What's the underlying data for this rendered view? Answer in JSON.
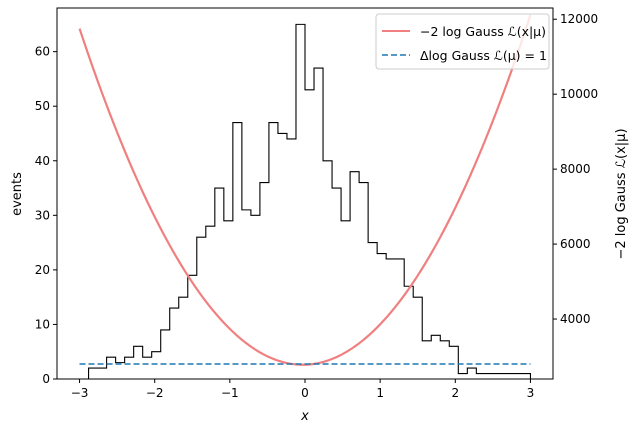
{
  "chart_data": {
    "type": "line",
    "xlabel": "x",
    "ylabel_left": "events",
    "ylabel_right": "−2 log Gauss ℒ(x|μ)",
    "xlim": [
      -3.3,
      3.3
    ],
    "ylim_left": [
      0,
      68
    ],
    "ylim_right": [
      2400,
      12300
    ],
    "x_ticks": [
      -3,
      -2,
      -1,
      0,
      1,
      2,
      3
    ],
    "x_tick_labels": [
      "−3",
      "−2",
      "−1",
      "0",
      "1",
      "2",
      "3"
    ],
    "y_left_ticks": [
      0,
      10,
      20,
      30,
      40,
      50,
      60
    ],
    "y_right_ticks": [
      4000,
      6000,
      8000,
      10000,
      12000
    ],
    "grid": false,
    "legend_position": "top-right",
    "legend": [
      {
        "label": "−2 log Gauss ℒ(x|μ)",
        "style": "solid",
        "color": "#f08080"
      },
      {
        "label": "Δlog Gauss ℒ(μ) = 1",
        "style": "dashed",
        "color": "#1f77b4"
      }
    ],
    "histogram": {
      "axis": "left",
      "color": "#000000",
      "bin_edges": [
        -3.0,
        -2.88,
        -2.76,
        -2.64,
        -2.52,
        -2.4,
        -2.28,
        -2.16,
        -2.04,
        -1.92,
        -1.8,
        -1.68,
        -1.56,
        -1.44,
        -1.32,
        -1.2,
        -1.08,
        -0.96,
        -0.84,
        -0.72,
        -0.6,
        -0.48,
        -0.36,
        -0.24,
        -0.12,
        0.0,
        0.12,
        0.24,
        0.36,
        0.48,
        0.6,
        0.72,
        0.84,
        0.96,
        1.08,
        1.2,
        1.32,
        1.44,
        1.56,
        1.68,
        1.8,
        1.92,
        2.04,
        2.16,
        2.28,
        2.4,
        2.52,
        2.64,
        2.76,
        2.88,
        3.0
      ],
      "counts": [
        0,
        2,
        2,
        4,
        3,
        4,
        6,
        4,
        5,
        9,
        13,
        15,
        19,
        26,
        28,
        35,
        29,
        47,
        31,
        30,
        36,
        47,
        45,
        44,
        65,
        53,
        57,
        40,
        35,
        29,
        38,
        36,
        25,
        23,
        22,
        22,
        17,
        15,
        7,
        8,
        7,
        6,
        1,
        2,
        1,
        1,
        1,
        1,
        1,
        1
      ]
    },
    "series": [
      {
        "axis": "right",
        "color": "#f08080",
        "style": "solid",
        "curve": "parabola",
        "x_min": -3.0,
        "x_max": 3.0,
        "vertex_x": -0.03,
        "vertex_y": 2780,
        "y_at_x_minus3": 11750
      },
      {
        "axis": "right",
        "color": "#1f77b4",
        "style": "dashed",
        "x": [
          -3.0,
          3.0
        ],
        "y": [
          2800,
          2800
        ]
      }
    ]
  }
}
